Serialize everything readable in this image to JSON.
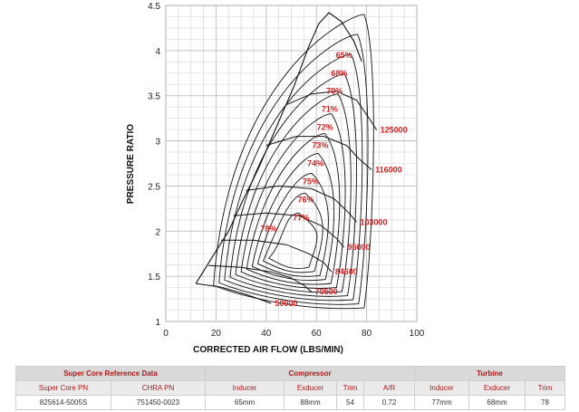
{
  "chart_data": {
    "type": "line",
    "title": "",
    "xlabel": "CORRECTED AIR FLOW (LBS/MIN)",
    "ylabel": "PRESSURE RATIO",
    "xlim": [
      0,
      100
    ],
    "ylim": [
      1,
      4.5
    ],
    "xticks": [
      "0",
      "20",
      "40",
      "60",
      "80",
      "100"
    ],
    "yticks": [
      "1",
      "1.5",
      "2",
      "2.5",
      "3",
      "3.5",
      "4",
      "4.5"
    ],
    "grid": true,
    "surge_line": [
      [
        12,
        1.42
      ],
      [
        16,
        1.6
      ],
      [
        20,
        1.78
      ],
      [
        25,
        2.0
      ],
      [
        30,
        2.3
      ],
      [
        37,
        2.7
      ],
      [
        44,
        3.15
      ],
      [
        51,
        3.6
      ],
      [
        57,
        4.05
      ],
      [
        61,
        4.3
      ],
      [
        65,
        4.42
      ],
      [
        70,
        4.32
      ],
      [
        75,
        4.1
      ],
      [
        78,
        3.88
      ]
    ],
    "speed_lines": [
      {
        "label": "50000",
        "x": [
          12,
          22,
          32,
          38,
          42
        ],
        "y": [
          1.42,
          1.38,
          1.3,
          1.24,
          1.2
        ]
      },
      {
        "label": "70500",
        "x": [
          17,
          30,
          42,
          50,
          55,
          58
        ],
        "y": [
          1.62,
          1.6,
          1.55,
          1.48,
          1.4,
          1.33
        ]
      },
      {
        "label": "84600",
        "x": [
          22,
          35,
          48,
          57,
          63,
          66
        ],
        "y": [
          1.9,
          1.9,
          1.85,
          1.75,
          1.65,
          1.55
        ]
      },
      {
        "label": "95000",
        "x": [
          27,
          40,
          53,
          62,
          68,
          71
        ],
        "y": [
          2.17,
          2.2,
          2.17,
          2.06,
          1.92,
          1.82
        ]
      },
      {
        "label": "103000",
        "x": [
          32,
          45,
          58,
          67,
          73,
          76
        ],
        "y": [
          2.45,
          2.5,
          2.47,
          2.36,
          2.2,
          2.1
        ]
      },
      {
        "label": "116000",
        "x": [
          40,
          52,
          63,
          72,
          77,
          82
        ],
        "y": [
          2.95,
          3.05,
          3.05,
          2.95,
          2.8,
          2.68
        ]
      },
      {
        "label": "125000",
        "x": [
          48,
          58,
          68,
          76,
          81,
          84
        ],
        "y": [
          3.4,
          3.52,
          3.55,
          3.45,
          3.25,
          3.12
        ]
      }
    ],
    "efficiency_islands": [
      "65%",
      "68%",
      "70%",
      "71%",
      "72%",
      "73%",
      "74%",
      "75%",
      "76%",
      "77%",
      "78%"
    ],
    "series_color": "#111111",
    "label_color": "#d42020"
  },
  "table": {
    "groups": [
      {
        "label": "Super Core Reference Data",
        "span": 2
      },
      {
        "label": "Compressor",
        "span": 4
      },
      {
        "label": "Turbine",
        "span": 3
      }
    ],
    "headers": [
      "Super Core PN",
      "CHRA PN",
      "Inducer",
      "Exducer",
      "Trim",
      "A/R",
      "Inducer",
      "Exducer",
      "Trim"
    ],
    "values": [
      "825614-5005S",
      "751450-0023",
      "65mm",
      "88mm",
      "54",
      "0.72",
      "77mm",
      "68mm",
      "78"
    ]
  }
}
